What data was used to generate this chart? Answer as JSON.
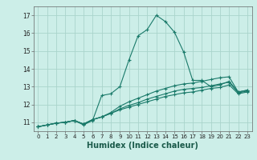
{
  "title": "",
  "xlabel": "Humidex (Indice chaleur)",
  "bg_color": "#cceee8",
  "grid_color": "#aad4cc",
  "line_color": "#1a7a6a",
  "xlim": [
    -0.5,
    23.5
  ],
  "ylim": [
    10.5,
    17.5
  ],
  "yticks": [
    11,
    12,
    13,
    14,
    15,
    16,
    17
  ],
  "xticks": [
    0,
    1,
    2,
    3,
    4,
    5,
    6,
    7,
    8,
    9,
    10,
    11,
    12,
    13,
    14,
    15,
    16,
    17,
    18,
    19,
    20,
    21,
    22,
    23
  ],
  "lines": [
    {
      "x": [
        0,
        1,
        2,
        3,
        4,
        5,
        6,
        7,
        8,
        9,
        10,
        11,
        12,
        13,
        14,
        15,
        16,
        17,
        18,
        19,
        20,
        21,
        22,
        23
      ],
      "y": [
        10.75,
        10.85,
        10.95,
        11.0,
        11.1,
        10.85,
        11.1,
        12.5,
        12.6,
        13.0,
        14.5,
        15.85,
        16.2,
        17.0,
        16.65,
        16.05,
        14.95,
        13.35,
        13.35,
        13.0,
        13.1,
        13.3,
        12.7,
        12.8
      ]
    },
    {
      "x": [
        0,
        1,
        2,
        3,
        4,
        5,
        6,
        7,
        8,
        9,
        10,
        11,
        12,
        13,
        14,
        15,
        16,
        17,
        18,
        19,
        20,
        21,
        22,
        23
      ],
      "y": [
        10.75,
        10.85,
        10.95,
        11.0,
        11.1,
        10.9,
        11.15,
        11.3,
        11.55,
        11.9,
        12.15,
        12.35,
        12.55,
        12.75,
        12.9,
        13.05,
        13.15,
        13.2,
        13.3,
        13.4,
        13.5,
        13.55,
        12.7,
        12.8
      ]
    },
    {
      "x": [
        0,
        1,
        2,
        3,
        4,
        5,
        6,
        7,
        8,
        9,
        10,
        11,
        12,
        13,
        14,
        15,
        16,
        17,
        18,
        19,
        20,
        21,
        22,
        23
      ],
      "y": [
        10.75,
        10.85,
        10.95,
        11.0,
        11.1,
        10.9,
        11.15,
        11.3,
        11.5,
        11.75,
        11.95,
        12.1,
        12.3,
        12.45,
        12.6,
        12.75,
        12.85,
        12.9,
        12.95,
        13.05,
        13.15,
        13.25,
        12.65,
        12.75
      ]
    },
    {
      "x": [
        0,
        1,
        2,
        3,
        4,
        5,
        6,
        7,
        8,
        9,
        10,
        11,
        12,
        13,
        14,
        15,
        16,
        17,
        18,
        19,
        20,
        21,
        22,
        23
      ],
      "y": [
        10.75,
        10.85,
        10.95,
        11.0,
        11.1,
        10.9,
        11.15,
        11.3,
        11.5,
        11.7,
        11.85,
        12.0,
        12.15,
        12.3,
        12.45,
        12.55,
        12.65,
        12.7,
        12.8,
        12.9,
        12.95,
        13.1,
        12.6,
        12.7
      ]
    }
  ],
  "tick_fontsize": 5.5,
  "xlabel_fontsize": 7
}
